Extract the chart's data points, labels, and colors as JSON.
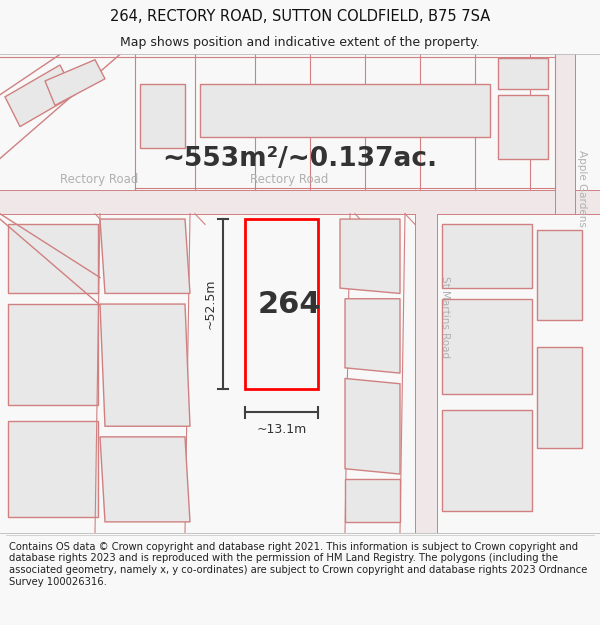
{
  "title_line1": "264, RECTORY ROAD, SUTTON COLDFIELD, B75 7SA",
  "title_line2": "Map shows position and indicative extent of the property.",
  "area_text": "~553m²/~0.137ac.",
  "property_number": "264",
  "dim_width": "~13.1m",
  "dim_height": "~52.5m",
  "footer_text": "Contains OS data © Crown copyright and database right 2021. This information is subject to Crown copyright and database rights 2023 and is reproduced with the permission of HM Land Registry. The polygons (including the associated geometry, namely x, y co-ordinates) are subject to Crown copyright and database rights 2023 Ordnance Survey 100026316.",
  "bg_color": "#f8f8f8",
  "map_bg": "#ffffff",
  "building_fill": "#e8e8e8",
  "building_edge": "#d08080",
  "road_fill": "#f0e8e8",
  "road_edge": "#d08080",
  "highlight_color": "#ff0000",
  "road_label_color": "#b0b0b0",
  "dim_line_color": "#404040",
  "text_color": "#333333",
  "title_fontsize": 10.5,
  "subtitle_fontsize": 9,
  "area_fontsize": 19,
  "property_fontsize": 22,
  "road_label_fontsize": 8.5,
  "footer_fontsize": 7.2
}
